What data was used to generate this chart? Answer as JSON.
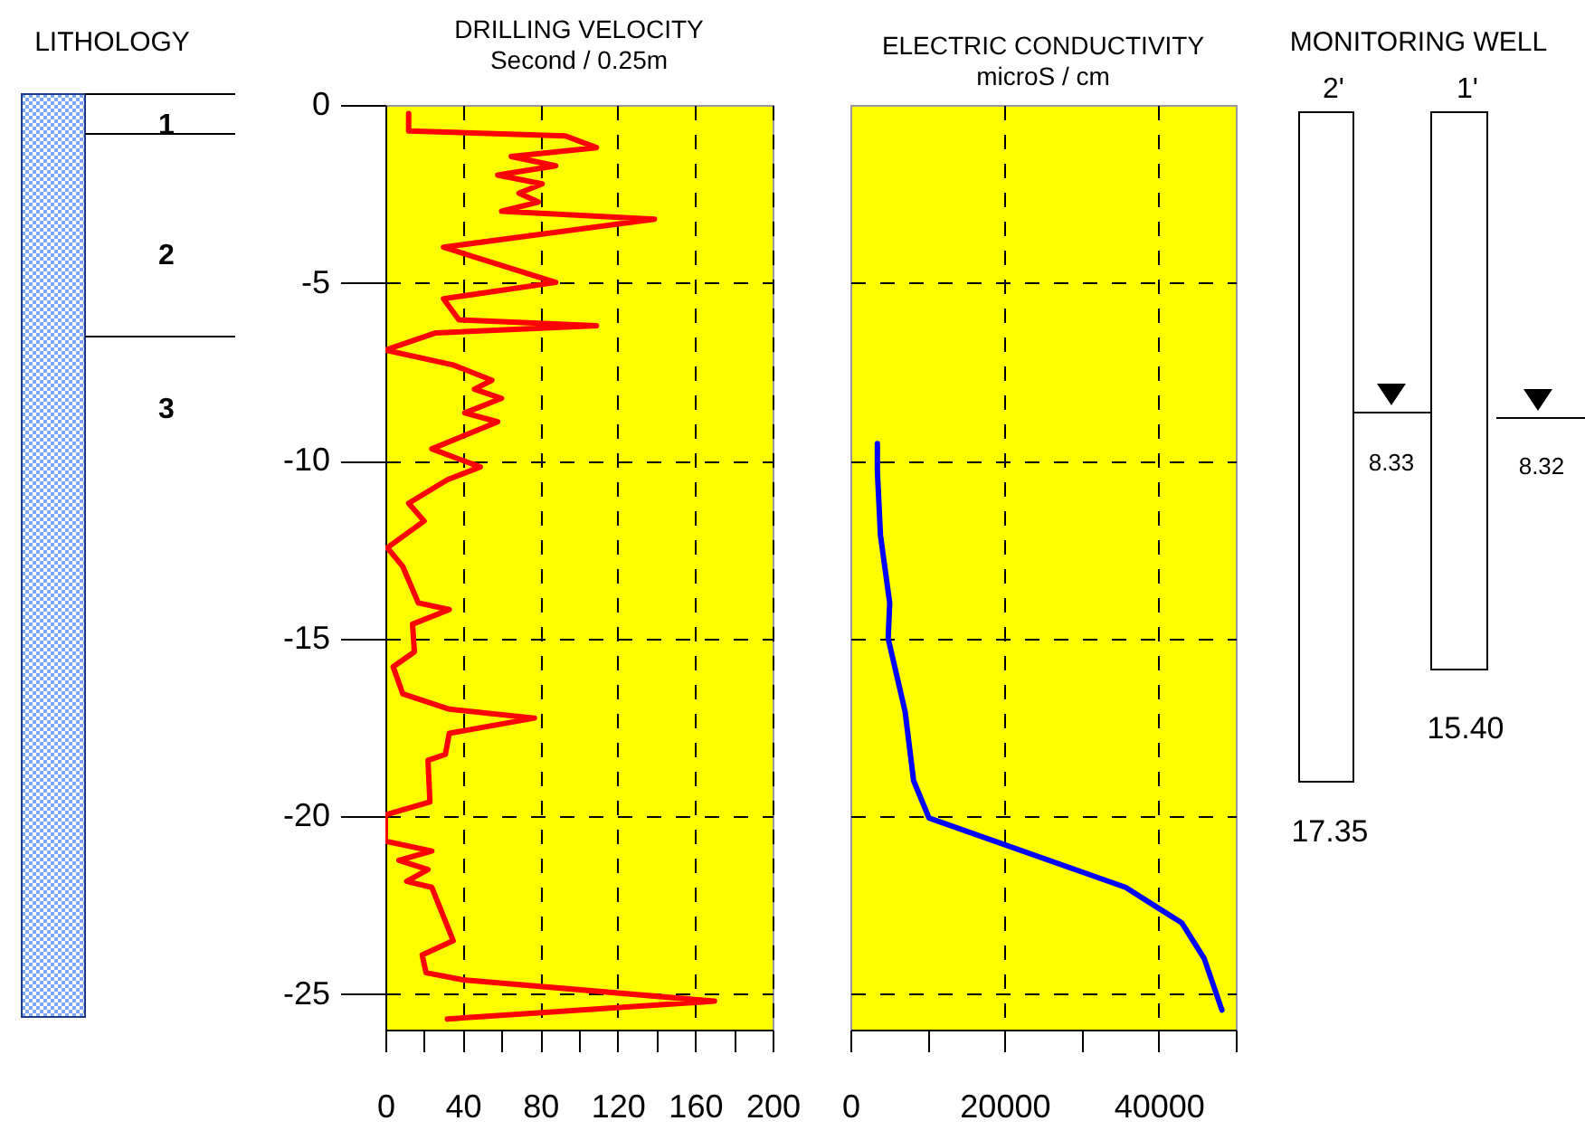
{
  "chart_data": [
    {
      "type": "other",
      "title": "LITHOLOGY",
      "annotations": [
        "1",
        "2",
        "3"
      ]
    },
    {
      "type": "line",
      "title": "DRILLING VELOCITY",
      "subtitle": "Second / 0.25m",
      "xlim": [
        0,
        200
      ],
      "xticks": [
        0,
        {
          "value": 20,
          "label": null
        },
        40,
        {
          "value": 60,
          "label": null
        },
        80,
        {
          "value": 100,
          "label": null
        },
        120,
        {
          "value": 140,
          "label": null
        },
        160,
        {
          "value": 180,
          "label": null
        },
        200
      ],
      "ylim": [
        -26,
        0
      ],
      "yticks": [
        0,
        -5,
        -10,
        -15,
        -20,
        -25
      ],
      "grid": true,
      "series": [
        {
          "color": "#ff0000",
          "x": [
            12,
            12,
            93,
            109,
            65,
            88,
            58,
            81,
            69,
            79,
            60,
            139,
            30,
            88,
            30,
            38,
            109,
            26,
            0,
            35,
            55,
            46,
            60,
            41,
            58,
            24,
            49,
            32,
            12,
            20,
            1,
            9,
            17,
            33,
            14,
            15,
            4,
            9,
            33,
            77,
            33,
            31,
            22,
            23,
            0,
            0,
            24,
            7,
            22,
            11,
            24,
            35,
            19,
            21,
            40,
            170,
            32
          ],
          "values": [
            -0.24,
            -0.73,
            -0.87,
            -1.2,
            -1.45,
            -1.71,
            -1.97,
            -2.22,
            -2.48,
            -2.73,
            -2.99,
            -3.21,
            -4.0,
            -4.99,
            -5.45,
            -6.04,
            -6.21,
            -6.41,
            -6.89,
            -7.31,
            -7.74,
            -7.99,
            -8.25,
            -8.66,
            -8.91,
            -9.67,
            -10.18,
            -10.54,
            -11.2,
            -11.7,
            -12.45,
            -12.98,
            -14.0,
            -14.19,
            -14.6,
            -15.38,
            -15.8,
            -16.56,
            -16.99,
            -17.24,
            -17.67,
            -18.26,
            -18.43,
            -19.6,
            -19.96,
            -20.7,
            -20.98,
            -21.24,
            -21.5,
            -21.83,
            -22.0,
            -23.5,
            -23.9,
            -24.4,
            -24.6,
            -25.2,
            -25.7
          ]
        }
      ]
    },
    {
      "type": "line",
      "title": "ELECTRIC CONDUCTIVITY",
      "subtitle": "microS / cm",
      "xlim": [
        0,
        50000
      ],
      "xticks": [
        0,
        {
          "value": 10000,
          "label": null
        },
        20000,
        {
          "value": 30000,
          "label": null
        },
        40000,
        {
          "value": 50000,
          "label": null
        }
      ],
      "ylim": [
        -26,
        0
      ],
      "yticks": [
        0,
        -5,
        -10,
        -15,
        -20,
        -25
      ],
      "grid": true,
      "tick_labels": "x",
      "series": [
        {
          "color": "#0000ff",
          "x": [
            3500,
            3500,
            3900,
            5100,
            4900,
            7100,
            8200,
            10200,
            35700,
            43000,
            45900,
            48200
          ],
          "values": [
            -9.52,
            -10.3,
            -12.1,
            -14.0,
            -15.0,
            -17.06,
            -19.0,
            -20.05,
            -22.0,
            -23.0,
            -24.0,
            -25.45
          ]
        }
      ]
    },
    {
      "type": "other",
      "title": "MONITORING WELL",
      "annotations": [
        "2'",
        "1'",
        "8.33",
        "8.32",
        "17.35",
        "15.40"
      ]
    }
  ]
}
